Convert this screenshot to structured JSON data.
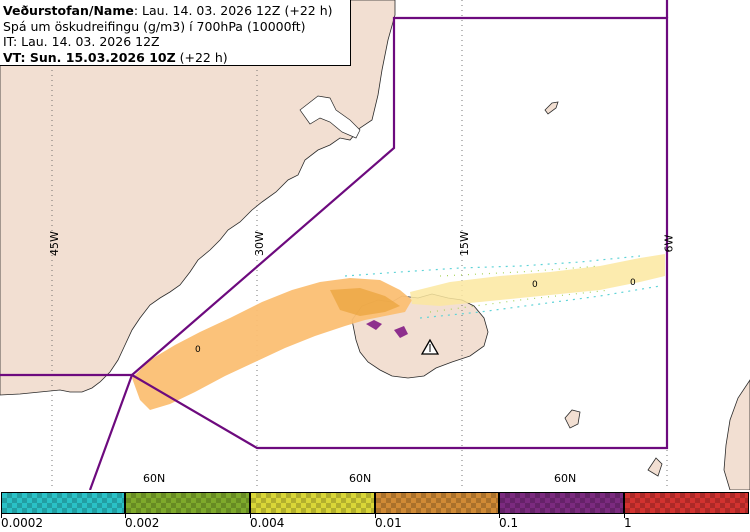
{
  "header": {
    "line1_bold": "Veðurstofan/Name",
    "line1_rest": ": Lau. 14. 03. 2026 12Z (+22 h)",
    "line2": "Spá um öskudreifingu (g/m3) í 700hPa (10000ft)",
    "line3": "IT: Lau. 14. 03. 2026 12Z",
    "line4_bold": "VT: Sun. 15.03.2026 10Z",
    "line4_rest": " (+22 h)"
  },
  "map": {
    "longitude_labels": [
      "45W",
      "30W",
      "15W",
      "6W"
    ],
    "latitude_labels": [
      "60N",
      "60N",
      "60N"
    ],
    "contour_labels": [
      "0",
      "0",
      "0"
    ],
    "land_color": "#f2dfd2",
    "sea_color": "#ffffff",
    "boundary_color": "#6d0a7e",
    "ash_main_color": "#fbbf73",
    "ash_dense_color": "#e9a23a",
    "ash_heavy_color": "#8e2f8d",
    "volcano_icon": "volcano-triangle-icon"
  },
  "legend": {
    "colors": [
      "#29c1c6",
      "#7ea92b",
      "#d9d637",
      "#d08a35",
      "#7b2a7f",
      "#d2322f"
    ],
    "tick_labels": [
      "0.0002",
      "0.002",
      "0.004",
      "0.01",
      "0.1",
      "1"
    ]
  }
}
